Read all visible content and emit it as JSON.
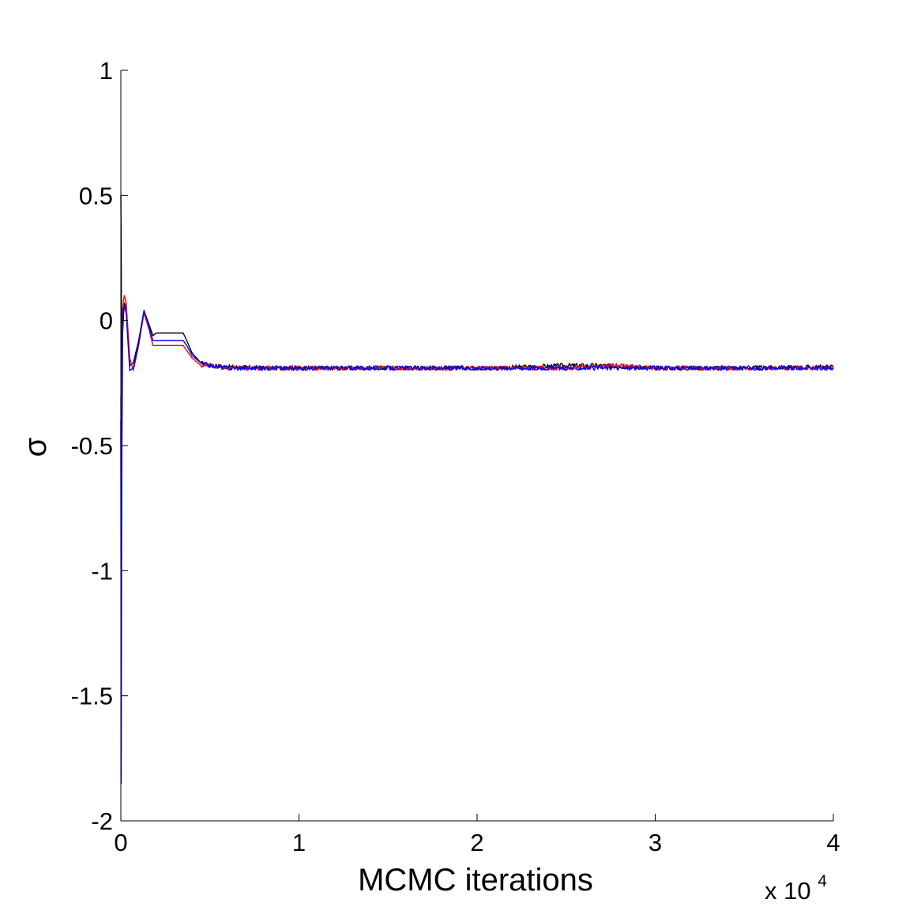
{
  "chart_data": {
    "type": "line",
    "title": "",
    "xlabel": "MCMC iterations",
    "ylabel": "σ",
    "x_multiplier_base": "x 10",
    "x_multiplier_exponent": "4",
    "xlim": [
      0,
      4
    ],
    "ylim": [
      -2,
      1
    ],
    "xticks": [
      0,
      1,
      2,
      3,
      4
    ],
    "xtick_labels": [
      "0",
      "1",
      "2",
      "3",
      "4"
    ],
    "yticks": [
      -2,
      -1.5,
      -1,
      -0.5,
      0,
      0.5,
      1
    ],
    "ytick_labels": [
      "-2",
      "-1.5",
      "-1",
      "-0.5",
      "0",
      "0.5",
      "1"
    ],
    "grid": false,
    "legend": "none",
    "series": [
      {
        "color": "#000000",
        "x": [
          0,
          0.002,
          0.004,
          0.006,
          0.008,
          0.01,
          0.015,
          0.02,
          0.03,
          0.05,
          0.07,
          0.1,
          0.13,
          0.16,
          0.18,
          0.2,
          0.25,
          0.3,
          0.35,
          0.37,
          0.4,
          0.45,
          0.5,
          0.6,
          0.8,
          1.0,
          1.5,
          2.0,
          2.3,
          2.5,
          2.7,
          3.0,
          3.5,
          4.0
        ],
        "y": [
          0.5,
          0.3,
          -0.2,
          -0.5,
          -0.3,
          -0.05,
          0.02,
          0.07,
          0.05,
          -0.18,
          -0.17,
          -0.08,
          0.04,
          -0.02,
          -0.06,
          -0.05,
          -0.05,
          -0.05,
          -0.05,
          -0.08,
          -0.13,
          -0.17,
          -0.18,
          -0.185,
          -0.19,
          -0.19,
          -0.19,
          -0.19,
          -0.185,
          -0.18,
          -0.18,
          -0.19,
          -0.19,
          -0.185
        ]
      },
      {
        "color": "#ff0000",
        "x": [
          0,
          0.002,
          0.004,
          0.006,
          0.008,
          0.01,
          0.015,
          0.02,
          0.03,
          0.05,
          0.07,
          0.1,
          0.13,
          0.16,
          0.18,
          0.2,
          0.25,
          0.3,
          0.35,
          0.37,
          0.4,
          0.45,
          0.5,
          0.6,
          0.8,
          1.0,
          1.5,
          2.0,
          2.5,
          2.8,
          3.0,
          3.5,
          4.0
        ],
        "y": [
          -0.3,
          -1.1,
          -0.6,
          -0.2,
          0.0,
          0.05,
          0.08,
          0.1,
          0.07,
          -0.15,
          -0.2,
          -0.1,
          0.03,
          -0.04,
          -0.1,
          -0.1,
          -0.1,
          -0.1,
          -0.1,
          -0.12,
          -0.15,
          -0.18,
          -0.18,
          -0.19,
          -0.19,
          -0.19,
          -0.19,
          -0.19,
          -0.19,
          -0.18,
          -0.19,
          -0.19,
          -0.19
        ]
      },
      {
        "color": "#0000ff",
        "x": [
          0,
          0.002,
          0.004,
          0.006,
          0.008,
          0.01,
          0.015,
          0.02,
          0.03,
          0.05,
          0.07,
          0.1,
          0.13,
          0.16,
          0.18,
          0.2,
          0.25,
          0.3,
          0.35,
          0.37,
          0.4,
          0.45,
          0.5,
          0.6,
          0.8,
          1.0,
          1.5,
          2.0,
          2.5,
          3.0,
          3.5,
          4.0
        ],
        "y": [
          -0.4,
          -1.85,
          -1.0,
          -0.4,
          -0.1,
          0.02,
          0.05,
          0.06,
          0.03,
          -0.2,
          -0.19,
          -0.09,
          0.04,
          -0.03,
          -0.08,
          -0.08,
          -0.08,
          -0.08,
          -0.08,
          -0.1,
          -0.14,
          -0.17,
          -0.18,
          -0.19,
          -0.19,
          -0.19,
          -0.19,
          -0.19,
          -0.19,
          -0.19,
          -0.19,
          -0.19
        ]
      }
    ]
  }
}
